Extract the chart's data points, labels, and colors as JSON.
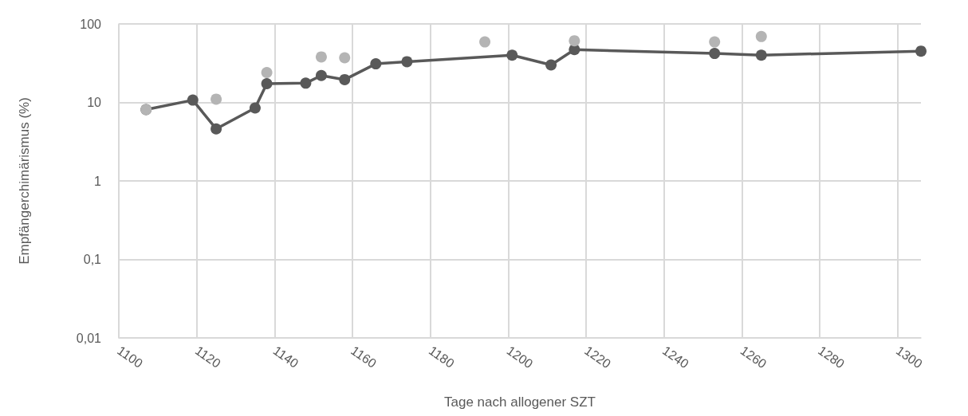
{
  "chart_data": {
    "type": "line",
    "xlabel": "Tage nach allogener SZT",
    "ylabel": "Empfängerchimärismus (%)",
    "log": "y",
    "grid": true,
    "marker": "circle",
    "line_style": "solid",
    "xlim": [
      1100,
      1306
    ],
    "xticks": [
      1100,
      1120,
      1140,
      1160,
      1180,
      1200,
      1220,
      1240,
      1260,
      1280,
      1300
    ],
    "ylim": [
      0.01,
      100
    ],
    "yticks": [
      {
        "value": 0.01,
        "label": "0,01"
      },
      {
        "value": 0.1,
        "label": "0,1"
      },
      1,
      10,
      100
    ],
    "series": [
      {
        "type": "scatter",
        "color": "#b4b4b4",
        "x": [
          1107,
          1125,
          1138,
          1152,
          1158,
          1194,
          1217,
          1253,
          1265
        ],
        "values": [
          8.1,
          11,
          24,
          38,
          37,
          59,
          61,
          59,
          69
        ]
      },
      {
        "color": "#595959",
        "x": [
          1107,
          1119,
          1125,
          1135,
          1138,
          1148,
          1152,
          1158,
          1166,
          1174,
          1201,
          1211,
          1217,
          1253,
          1265,
          1306
        ],
        "values": [
          8.1,
          10.7,
          4.6,
          8.5,
          17.3,
          17.6,
          22,
          19.5,
          31,
          33,
          40,
          30,
          47,
          42,
          40,
          45
        ]
      }
    ]
  }
}
